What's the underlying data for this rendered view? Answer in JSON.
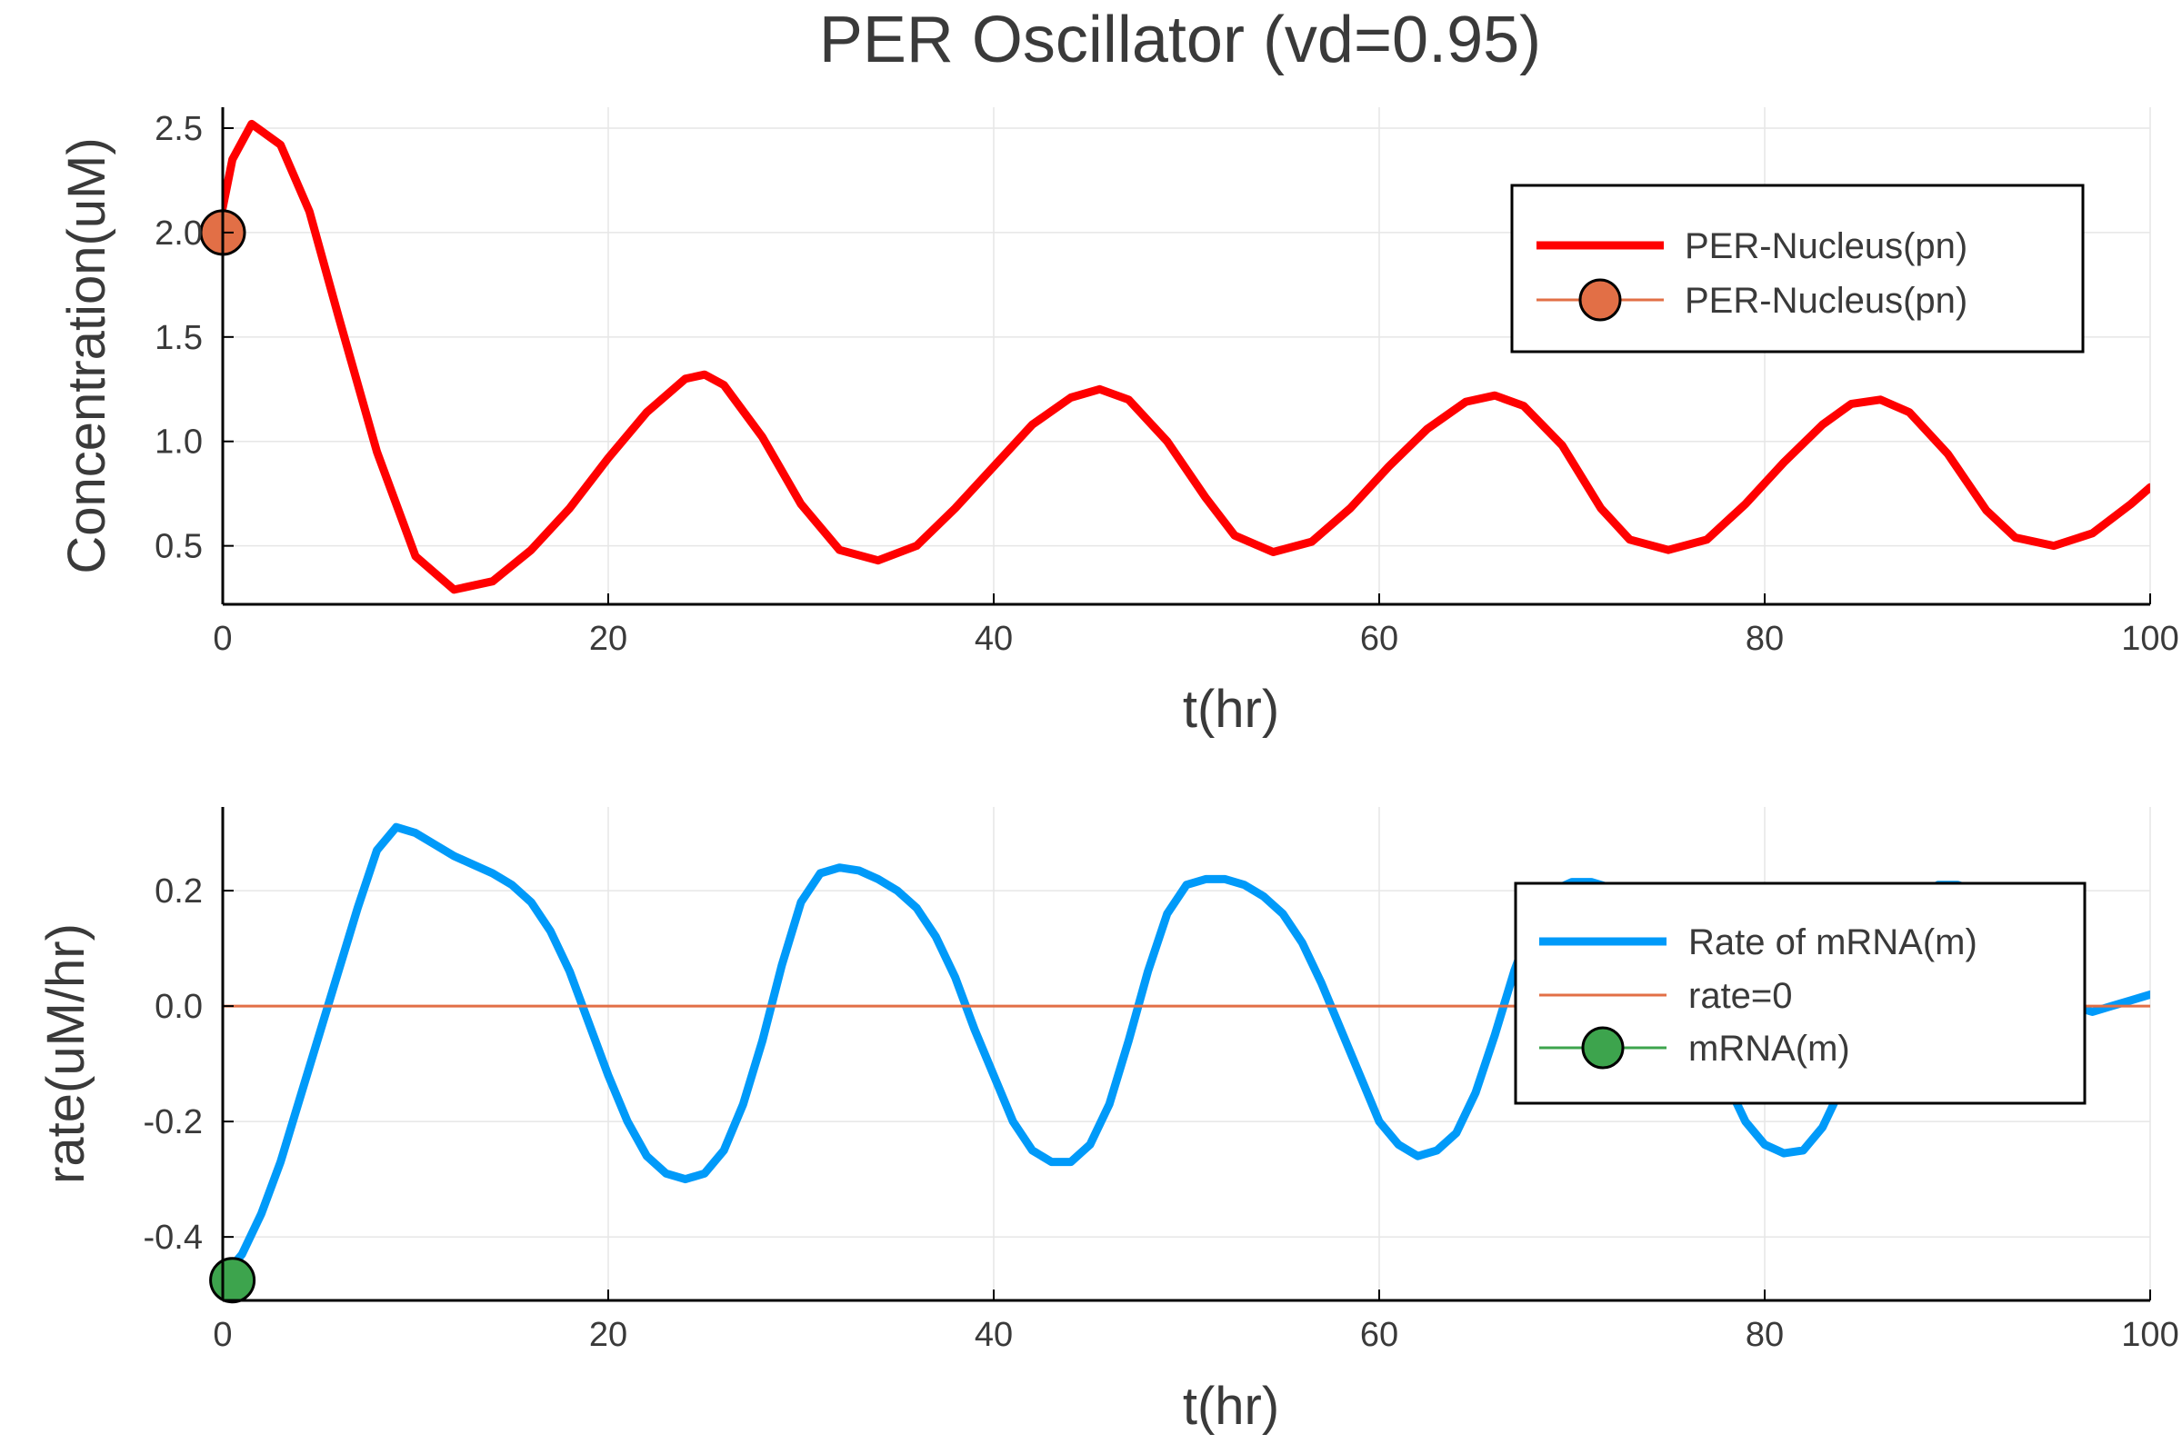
{
  "title": "PER Oscillator (vd=0.95)",
  "chart_data": [
    {
      "type": "line",
      "xlabel": "t(hr)",
      "ylabel": "Concentration(uM)",
      "xlim": [
        0,
        100
      ],
      "ylim": [
        0.22,
        2.6
      ],
      "xticks": [
        0,
        20,
        40,
        60,
        80,
        100
      ],
      "xtick_labels": [
        "0",
        "20",
        "40",
        "60",
        "80",
        "100"
      ],
      "yticks": [
        0.5,
        1.0,
        1.5,
        2.0,
        2.5
      ],
      "ytick_labels": [
        "0.5",
        "1.0",
        "1.5",
        "2.0",
        "2.5"
      ],
      "grid": true,
      "legend_position": "top-right",
      "series": [
        {
          "name": "PER-Nucleus(pn)",
          "kind": "line",
          "color": "#ff0000",
          "x": [
            0,
            0.5,
            1.5,
            3,
            4.5,
            6,
            8,
            10,
            12,
            14,
            16,
            18,
            20,
            22,
            24,
            25,
            26,
            28,
            30,
            32,
            34,
            36,
            38,
            40,
            42,
            44,
            45.5,
            47,
            49,
            51,
            52.5,
            54.5,
            56.5,
            58.5,
            60.5,
            62.5,
            64.5,
            66,
            67.5,
            69.5,
            71.5,
            73,
            75,
            77,
            79,
            81,
            83,
            84.5,
            86,
            87.5,
            89.5,
            91.5,
            93,
            95,
            97,
            99,
            100
          ],
          "y": [
            2.12,
            2.35,
            2.52,
            2.42,
            2.1,
            1.6,
            0.95,
            0.45,
            0.29,
            0.33,
            0.48,
            0.68,
            0.92,
            1.14,
            1.3,
            1.32,
            1.27,
            1.02,
            0.7,
            0.48,
            0.43,
            0.5,
            0.68,
            0.88,
            1.08,
            1.21,
            1.25,
            1.2,
            1.0,
            0.73,
            0.55,
            0.47,
            0.52,
            0.68,
            0.88,
            1.06,
            1.19,
            1.22,
            1.17,
            0.98,
            0.68,
            0.53,
            0.48,
            0.53,
            0.7,
            0.9,
            1.08,
            1.18,
            1.2,
            1.14,
            0.94,
            0.67,
            0.54,
            0.5,
            0.56,
            0.7,
            0.78
          ]
        },
        {
          "name": "PER-Nucleus(pn)",
          "kind": "marker",
          "color": "#e26f46",
          "x": [
            0
          ],
          "y": [
            2.0
          ]
        }
      ]
    },
    {
      "type": "line",
      "xlabel": "t(hr)",
      "ylabel": "rate(uM/hr)",
      "xlim": [
        0,
        100
      ],
      "ylim": [
        -0.51,
        0.345
      ],
      "xticks": [
        0,
        20,
        40,
        60,
        80,
        100
      ],
      "xtick_labels": [
        "0",
        "20",
        "40",
        "60",
        "80",
        "100"
      ],
      "yticks": [
        -0.4,
        -0.2,
        0.0,
        0.2
      ],
      "ytick_labels": [
        "-0.4",
        "-0.2",
        "0.0",
        "0.2"
      ],
      "grid": true,
      "legend_position": "top-right",
      "series": [
        {
          "name": "Rate of mRNA(m)",
          "kind": "line",
          "color": "#009af9",
          "x": [
            0,
            1,
            2,
            3,
            4,
            5,
            6,
            7,
            8,
            9,
            10,
            11,
            12,
            13,
            14,
            15,
            16,
            17,
            18,
            19,
            20,
            21,
            22,
            23,
            24,
            25,
            26,
            27,
            28,
            29,
            30,
            31,
            32,
            33,
            34,
            35,
            36,
            37,
            38,
            39,
            40,
            41,
            42,
            43,
            44,
            45,
            46,
            47,
            48,
            49,
            50,
            51,
            52,
            53,
            54,
            55,
            56,
            57,
            58,
            59,
            60,
            61,
            62,
            63,
            64,
            65,
            66,
            67,
            68,
            69,
            70,
            71,
            72,
            73,
            74,
            75,
            76,
            77,
            78,
            79,
            80,
            81,
            82,
            83,
            84,
            85,
            86,
            87,
            88,
            89,
            90,
            91,
            92,
            93,
            94,
            95,
            96,
            97,
            98,
            99,
            100
          ],
          "y": [
            -0.47,
            -0.43,
            -0.36,
            -0.27,
            -0.16,
            -0.05,
            0.06,
            0.17,
            0.27,
            0.31,
            0.3,
            0.28,
            0.26,
            0.245,
            0.23,
            0.21,
            0.18,
            0.13,
            0.06,
            -0.03,
            -0.12,
            -0.2,
            -0.26,
            -0.29,
            -0.3,
            -0.29,
            -0.25,
            -0.17,
            -0.06,
            0.07,
            0.18,
            0.23,
            0.24,
            0.235,
            0.22,
            0.2,
            0.17,
            0.12,
            0.05,
            -0.04,
            -0.12,
            -0.2,
            -0.25,
            -0.27,
            -0.27,
            -0.24,
            -0.17,
            -0.06,
            0.06,
            0.16,
            0.21,
            0.22,
            0.22,
            0.21,
            0.19,
            0.16,
            0.11,
            0.04,
            -0.04,
            -0.12,
            -0.2,
            -0.24,
            -0.26,
            -0.25,
            -0.22,
            -0.15,
            -0.05,
            0.06,
            0.15,
            0.2,
            0.215,
            0.215,
            0.205,
            0.18,
            0.15,
            0.1,
            0.03,
            -0.05,
            -0.13,
            -0.2,
            -0.24,
            -0.255,
            -0.25,
            -0.21,
            -0.14,
            -0.04,
            0.06,
            0.15,
            0.19,
            0.21,
            0.21,
            0.2,
            0.18,
            0.15,
            0.1,
            0.05,
            0.0,
            -0.01,
            0.0,
            0.01,
            0.02
          ],
          "hidden_under_legend": true
        },
        {
          "name": "rate=0",
          "kind": "line",
          "color": "#e26f46",
          "x": [
            0,
            100
          ],
          "y": [
            0,
            0
          ]
        },
        {
          "name": "mRNA(m)",
          "kind": "marker",
          "color": "#3da44d",
          "x": [
            0.5
          ],
          "y": [
            -0.475
          ]
        }
      ]
    }
  ]
}
